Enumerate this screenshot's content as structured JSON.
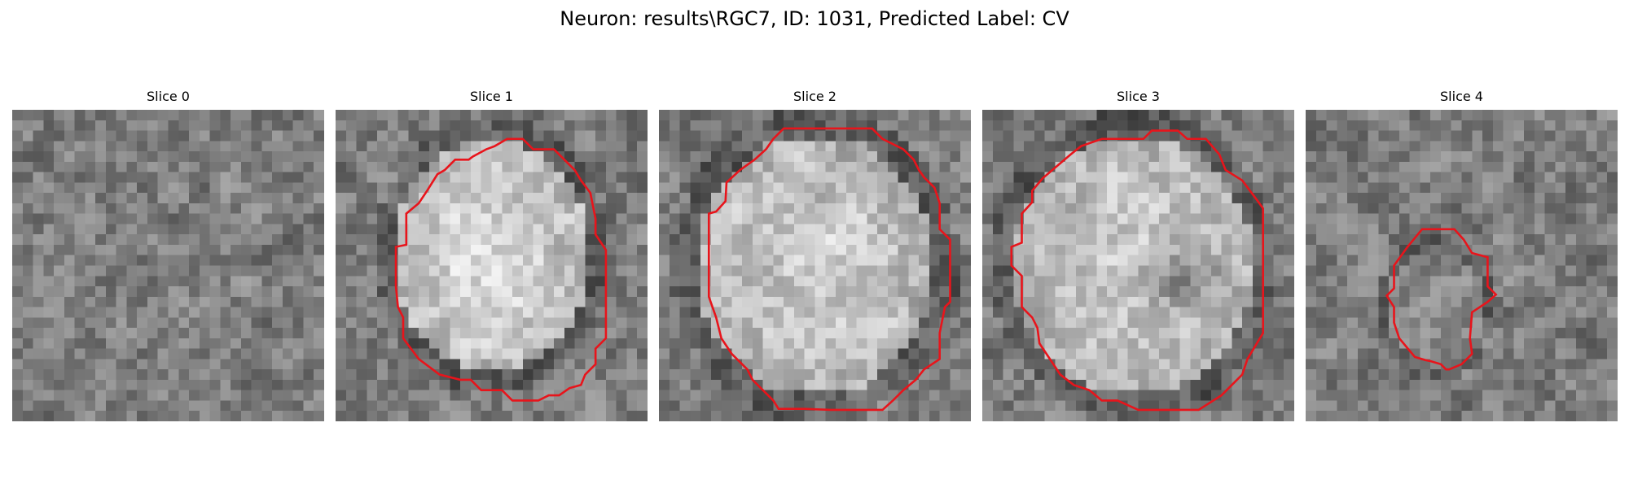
{
  "figure": {
    "title": "Neuron: results\\RGC7, ID: 1031, Predicted Label: CV",
    "neuron_path": "results\\RGC7",
    "neuron_id": 1031,
    "predicted_label": "CV"
  },
  "colors": {
    "background": "#ffffff",
    "contour": "#e8141b",
    "colormap": "gray"
  },
  "grid_size": 30,
  "slices": [
    {
      "title": "Slice 0",
      "seed": 11,
      "blob": null,
      "contour": []
    },
    {
      "title": "Slice 1",
      "seed": 23,
      "blob": {
        "cx": 15.0,
        "cy": 14.0,
        "rx": 9.5,
        "ry": 11.0,
        "brighten": 0.35
      },
      "contour": [
        [
          16.5,
          2.8
        ],
        [
          18,
          2.8
        ],
        [
          19,
          3.8
        ],
        [
          21,
          3.8
        ],
        [
          22,
          4.8
        ],
        [
          23,
          5.8
        ],
        [
          23.6,
          6.8
        ],
        [
          24.5,
          8
        ],
        [
          25,
          10.5
        ],
        [
          25,
          12
        ],
        [
          26,
          13.5
        ],
        [
          26,
          22
        ],
        [
          25,
          23
        ],
        [
          25,
          24.5
        ],
        [
          24,
          25.5
        ],
        [
          23.6,
          26.5
        ],
        [
          22.5,
          26.8
        ],
        [
          21.5,
          27.5
        ],
        [
          20.5,
          27.5
        ],
        [
          19.5,
          28
        ],
        [
          17,
          28
        ],
        [
          16,
          27
        ],
        [
          14,
          27
        ],
        [
          13,
          26
        ],
        [
          12,
          26
        ],
        [
          10,
          25.5
        ],
        [
          8,
          24
        ],
        [
          6.5,
          22
        ],
        [
          6.5,
          20
        ],
        [
          6,
          19
        ],
        [
          5.8,
          17
        ],
        [
          5.8,
          13.2
        ],
        [
          6.8,
          13
        ],
        [
          6.8,
          10
        ],
        [
          8,
          9
        ],
        [
          8.8,
          7.8
        ],
        [
          9.8,
          6.2
        ],
        [
          10.5,
          5.8
        ],
        [
          11.5,
          4.8
        ],
        [
          12.8,
          4.8
        ],
        [
          13.2,
          4.5
        ],
        [
          14.5,
          3.8
        ],
        [
          15.3,
          3.5
        ]
      ]
    },
    {
      "title": "Slice 2",
      "seed": 37,
      "blob": {
        "cx": 15.0,
        "cy": 15.0,
        "rx": 11.5,
        "ry": 12.5,
        "brighten": 0.3
      },
      "contour": [
        [
          12,
          1.8
        ],
        [
          20.5,
          1.8
        ],
        [
          21.5,
          2.8
        ],
        [
          23.5,
          3.8
        ],
        [
          24.5,
          4.8
        ],
        [
          25,
          5.8
        ],
        [
          25.5,
          6.5
        ],
        [
          26.5,
          7.5
        ],
        [
          27,
          9
        ],
        [
          27,
          11.5
        ],
        [
          28,
          12.5
        ],
        [
          28,
          18.5
        ],
        [
          27.5,
          19
        ],
        [
          27,
          21.5
        ],
        [
          27,
          24
        ],
        [
          25.5,
          25
        ],
        [
          24.7,
          26
        ],
        [
          23.5,
          27
        ],
        [
          22.5,
          28
        ],
        [
          21.5,
          28.9
        ],
        [
          16.5,
          28.9
        ],
        [
          14,
          28.8
        ],
        [
          11.5,
          28.8
        ],
        [
          11,
          28
        ],
        [
          10,
          27
        ],
        [
          9,
          26
        ],
        [
          8.5,
          25
        ],
        [
          7,
          23.5
        ],
        [
          6,
          22
        ],
        [
          5.5,
          20
        ],
        [
          4.8,
          18
        ],
        [
          4.8,
          10
        ],
        [
          5.5,
          9.8
        ],
        [
          6.4,
          8.8
        ],
        [
          6.5,
          7
        ],
        [
          7.8,
          5.8
        ],
        [
          9.2,
          4.8
        ],
        [
          10.3,
          3.8
        ],
        [
          11,
          2.8
        ]
      ]
    },
    {
      "title": "Slice 3",
      "seed": 53,
      "blob": {
        "cx": 14.5,
        "cy": 15.0,
        "rx": 11.5,
        "ry": 12.5,
        "brighten": 0.3
      },
      "dark": {
        "cx": 19.0,
        "cy": 16.0,
        "r": 4.5,
        "darken": 0.3
      },
      "contour": [
        [
          11.5,
          2.8
        ],
        [
          15.5,
          2.8
        ],
        [
          16.3,
          2
        ],
        [
          18.8,
          2
        ],
        [
          19.7,
          2.8
        ],
        [
          21.5,
          2.8
        ],
        [
          22.8,
          4.3
        ],
        [
          23.4,
          5.8
        ],
        [
          25,
          6.8
        ],
        [
          26.5,
          8.8
        ],
        [
          27,
          9.5
        ],
        [
          27,
          21.5
        ],
        [
          26.4,
          22.5
        ],
        [
          25.5,
          24
        ],
        [
          25,
          25.5
        ],
        [
          24,
          26.5
        ],
        [
          23,
          27.5
        ],
        [
          20.8,
          28.9
        ],
        [
          15,
          28.9
        ],
        [
          13,
          28
        ],
        [
          11.5,
          28
        ],
        [
          10.3,
          27
        ],
        [
          8.8,
          26.5
        ],
        [
          7.5,
          25.5
        ],
        [
          6.5,
          24
        ],
        [
          5.5,
          22.5
        ],
        [
          5.3,
          21
        ],
        [
          4.8,
          20
        ],
        [
          3.8,
          19
        ],
        [
          3.8,
          16
        ],
        [
          2.8,
          15
        ],
        [
          2.8,
          13.2
        ],
        [
          3.8,
          12.8
        ],
        [
          3.8,
          10
        ],
        [
          4.8,
          8.9
        ],
        [
          4.8,
          7.8
        ],
        [
          5.8,
          6.6
        ],
        [
          6.5,
          6
        ],
        [
          8.5,
          4.3
        ],
        [
          9.5,
          3.5
        ]
      ]
    },
    {
      "title": "Slice 4",
      "seed": 71,
      "blob": {
        "cx": 12.5,
        "cy": 19.0,
        "rx": 4.5,
        "ry": 6.0,
        "brighten": 0.05
      },
      "contour": [
        [
          11.2,
          11.5
        ],
        [
          14.3,
          11.5
        ],
        [
          15.2,
          12.5
        ],
        [
          16,
          13.8
        ],
        [
          17.5,
          14.2
        ],
        [
          17.5,
          17
        ],
        [
          18.3,
          17.8
        ],
        [
          17.5,
          18.5
        ],
        [
          16,
          19.5
        ],
        [
          15.8,
          22
        ],
        [
          16,
          23.5
        ],
        [
          15,
          24.5
        ],
        [
          13.8,
          25
        ],
        [
          13.5,
          25
        ],
        [
          13,
          24.5
        ],
        [
          12,
          24.2
        ],
        [
          11.5,
          24.1
        ],
        [
          10.5,
          23.8
        ],
        [
          9,
          22
        ],
        [
          8.5,
          20.5
        ],
        [
          8.5,
          19
        ],
        [
          7.8,
          17.9
        ],
        [
          8.5,
          17.2
        ],
        [
          8.5,
          15
        ],
        [
          9.8,
          13.2
        ]
      ]
    }
  ]
}
